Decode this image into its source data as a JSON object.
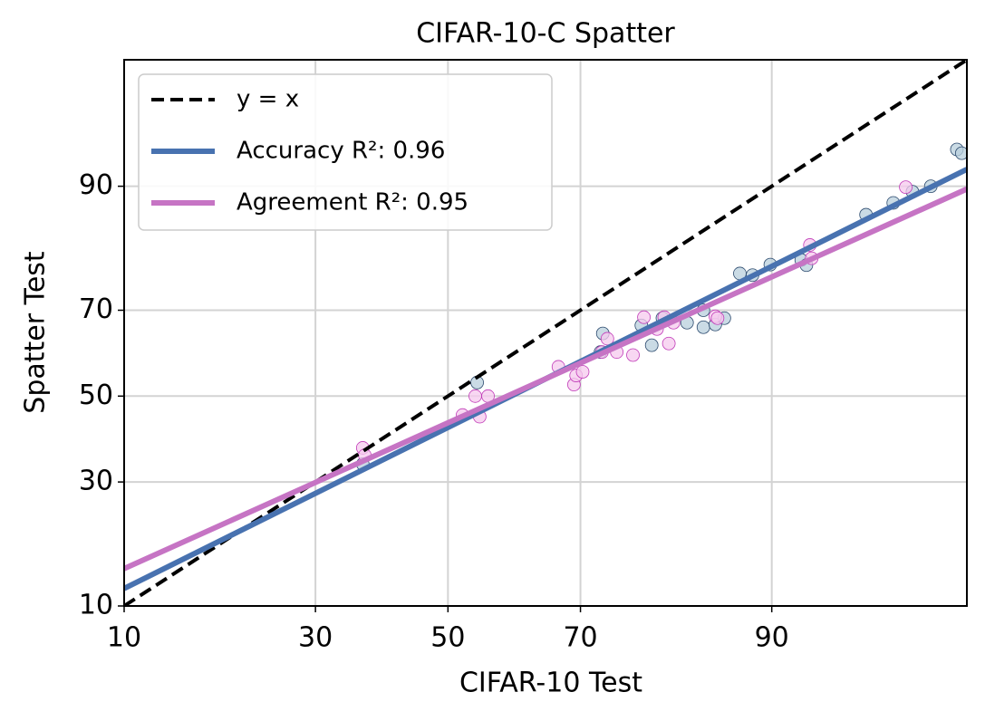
{
  "chart_data": {
    "type": "scatter-fit",
    "title": "CIFAR-10-C Spatter",
    "x_label": "CIFAR-10 Test",
    "y_label": "Spatter Test",
    "scale": "probit",
    "grid": true,
    "legend": "upper left",
    "xlim": [
      10,
      98
    ],
    "ylim": [
      10,
      98
    ],
    "xticks": [
      10,
      30,
      50,
      70,
      90
    ],
    "yticks": [
      10,
      30,
      50,
      70,
      90
    ],
    "series": [
      {
        "name": "y = x",
        "color": "#000000",
        "dash": true,
        "x": [
          10,
          98
        ],
        "values": [
          10,
          98
        ]
      },
      {
        "name": "Accuracy R²: 0.96",
        "color": "#4872b0",
        "dash": false,
        "x": [
          10,
          98
        ],
        "values": [
          12.0,
          91.7
        ]
      },
      {
        "name": "Agreement R²: 0.95",
        "color": "#c674c4",
        "dash": false,
        "x": [
          10,
          98
        ],
        "values": [
          14.6,
          89.7
        ]
      }
    ],
    "points": [
      {
        "color": "#b8cfdc",
        "edge": "#2c4a6e",
        "x": [
          36.8,
          54.6,
          73.0,
          72.7,
          77.8,
          79.0,
          80.2,
          82.8,
          84.4,
          84.4,
          85.5,
          86.3,
          87.6,
          88.6,
          89.9,
          91.9,
          92.2,
          95.1,
          96.1,
          96.7,
          97.2,
          97.8,
          97.9
        ],
        "values": [
          33.9,
          53.3,
          64.9,
          60.6,
          66.7,
          62.2,
          68.3,
          67.3,
          70.0,
          66.3,
          66.9,
          68.3,
          77.3,
          77.0,
          78.9,
          79.7,
          78.8,
          86.6,
          88.1,
          89.4,
          90.0,
          93.4,
          93.1
        ]
      },
      {
        "color": "#f5c9ee",
        "edge": "#c03bb8",
        "x": [
          36.8,
          37.1,
          52.3,
          54.3,
          55.0,
          56.3,
          66.9,
          69.1,
          69.4,
          70.3,
          72.9,
          73.6,
          74.8,
          76.8,
          78.1,
          79.6,
          80.4,
          80.9,
          81.4,
          85.5,
          85.7,
          92.4,
          92.5,
          96.5
        ],
        "values": [
          37.6,
          35.9,
          45.4,
          50.0,
          45.0,
          50.0,
          57.1,
          52.8,
          55.0,
          55.9,
          60.6,
          63.7,
          60.6,
          59.9,
          68.5,
          65.9,
          68.5,
          62.6,
          67.3,
          68.7,
          68.3,
          82.2,
          80.0,
          89.9
        ]
      }
    ]
  }
}
